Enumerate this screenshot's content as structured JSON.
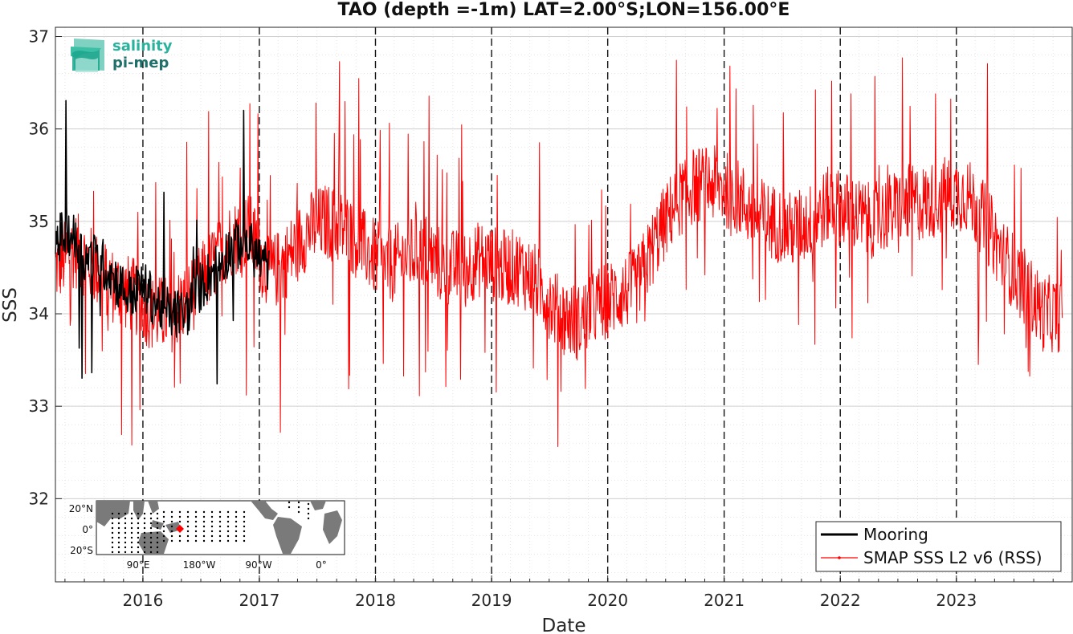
{
  "chart_data": {
    "type": "line",
    "title": "TAO (depth =-1m) LAT=2.00°S;LON=156.00°E",
    "xlabel": "Date",
    "ylabel": "SSS",
    "x_ticks": [
      "2016",
      "2017",
      "2018",
      "2019",
      "2020",
      "2021",
      "2022",
      "2023"
    ],
    "y_ticks": [
      "32",
      "33",
      "34",
      "35",
      "36",
      "37"
    ],
    "xlim": [
      "2015-04-01",
      "2023-12-31"
    ],
    "ylim": [
      31.1,
      37.1
    ],
    "grid": true,
    "year_lines": [
      "2016",
      "2017",
      "2018",
      "2019",
      "2020",
      "2021",
      "2022",
      "2023"
    ],
    "legend_position": "bottom-right",
    "series": [
      {
        "name": "Mooring",
        "color": "#000000",
        "x": [
          "2015-04-01",
          "2015-05-15",
          "2015-07-01",
          "2015-08-15",
          "2015-10-01",
          "2015-11-15",
          "2016-01-01",
          "2016-02-15",
          "2016-04-01",
          "2016-05-15",
          "2016-07-01",
          "2016-08-15",
          "2016-10-01",
          "2016-11-15",
          "2017-01-01",
          "2017-02-01"
        ],
        "y": [
          34.8,
          34.9,
          34.6,
          34.6,
          34.4,
          34.2,
          34.3,
          34.1,
          34.0,
          34.0,
          34.3,
          34.5,
          34.7,
          34.8,
          34.6,
          34.5
        ]
      },
      {
        "name": "SMAP SSS L2 v6 (RSS)",
        "color": "#ff0000",
        "x": [
          "2015-04-01",
          "2015-06-01",
          "2015-08-01",
          "2015-10-01",
          "2015-12-01",
          "2016-02-01",
          "2016-04-01",
          "2016-06-01",
          "2016-08-01",
          "2016-10-01",
          "2016-12-01",
          "2017-02-01",
          "2017-04-01",
          "2017-06-01",
          "2017-08-01",
          "2017-10-01",
          "2017-12-01",
          "2018-02-01",
          "2018-04-01",
          "2018-06-01",
          "2018-08-01",
          "2018-10-01",
          "2018-12-01",
          "2019-02-01",
          "2019-04-01",
          "2019-06-01",
          "2019-08-01",
          "2019-10-01",
          "2019-12-01",
          "2020-02-01",
          "2020-04-01",
          "2020-06-01",
          "2020-08-01",
          "2020-10-01",
          "2020-12-01",
          "2021-02-01",
          "2021-04-01",
          "2021-06-01",
          "2021-08-01",
          "2021-10-01",
          "2021-12-01",
          "2022-02-01",
          "2022-04-01",
          "2022-06-01",
          "2022-08-01",
          "2022-10-01",
          "2022-12-01",
          "2023-02-01",
          "2023-04-01",
          "2023-06-01",
          "2023-08-01",
          "2023-10-01",
          "2023-12-01"
        ],
        "y": [
          34.5,
          34.7,
          34.5,
          34.3,
          34.2,
          34.0,
          34.0,
          34.2,
          34.5,
          34.8,
          34.9,
          34.4,
          34.6,
          34.9,
          35.0,
          34.9,
          34.7,
          34.5,
          34.6,
          34.7,
          34.5,
          34.5,
          34.6,
          34.5,
          34.5,
          34.3,
          34.0,
          33.9,
          34.1,
          34.2,
          34.3,
          34.8,
          35.2,
          35.4,
          35.4,
          35.3,
          35.1,
          35.0,
          34.9,
          35.0,
          35.2,
          35.1,
          35.0,
          35.1,
          35.2,
          35.2,
          35.3,
          35.3,
          35.0,
          34.6,
          34.3,
          34.0,
          34.0
        ]
      }
    ]
  },
  "logo": {
    "line1": "salinity",
    "line2": "pi-mep"
  },
  "inset_map": {
    "lat_ticks": [
      "20°N",
      "0°",
      "20°S"
    ],
    "lon_ticks": [
      "90°E",
      "180°W",
      "90°W",
      "0°"
    ],
    "marker_color": "#ff0000"
  }
}
